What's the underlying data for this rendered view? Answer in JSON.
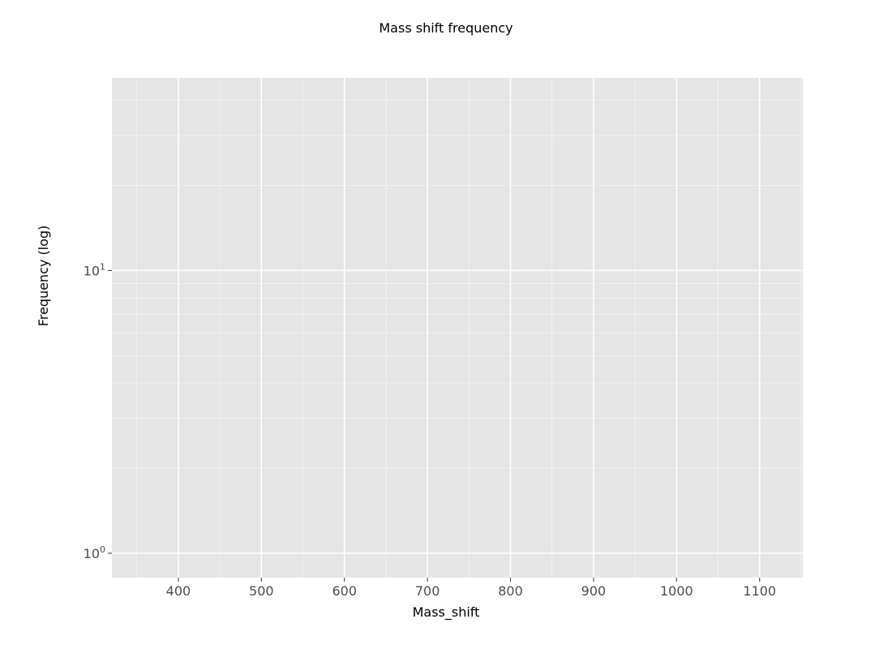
{
  "chart_data": {
    "type": "scatter",
    "title": "Mass shift frequency",
    "xlabel": "Mass_shift",
    "ylabel": "Frequency (log)",
    "xlim": [
      320,
      1152
    ],
    "ylim": [
      0.82,
      48
    ],
    "y_scale": "log",
    "grid": true,
    "legend": "none",
    "x_ticks": [
      400,
      500,
      600,
      700,
      800,
      900,
      1000,
      1100
    ],
    "x_minor_ticks": [
      350,
      450,
      550,
      650,
      750,
      850,
      950,
      1050,
      1150
    ],
    "y_ticks": [
      {
        "value": 1,
        "base": "10",
        "exp": "0"
      },
      {
        "value": 10,
        "base": "10",
        "exp": "1"
      }
    ],
    "y_minor_ticks": [
      2,
      3,
      4,
      5,
      6,
      7,
      8,
      9,
      20,
      30,
      40
    ],
    "colors": {
      "panel": "#e5e5e5",
      "grid": "#ffffff",
      "tick_text": "#4d4d4d",
      "text": "#000000"
    },
    "points": []
  }
}
